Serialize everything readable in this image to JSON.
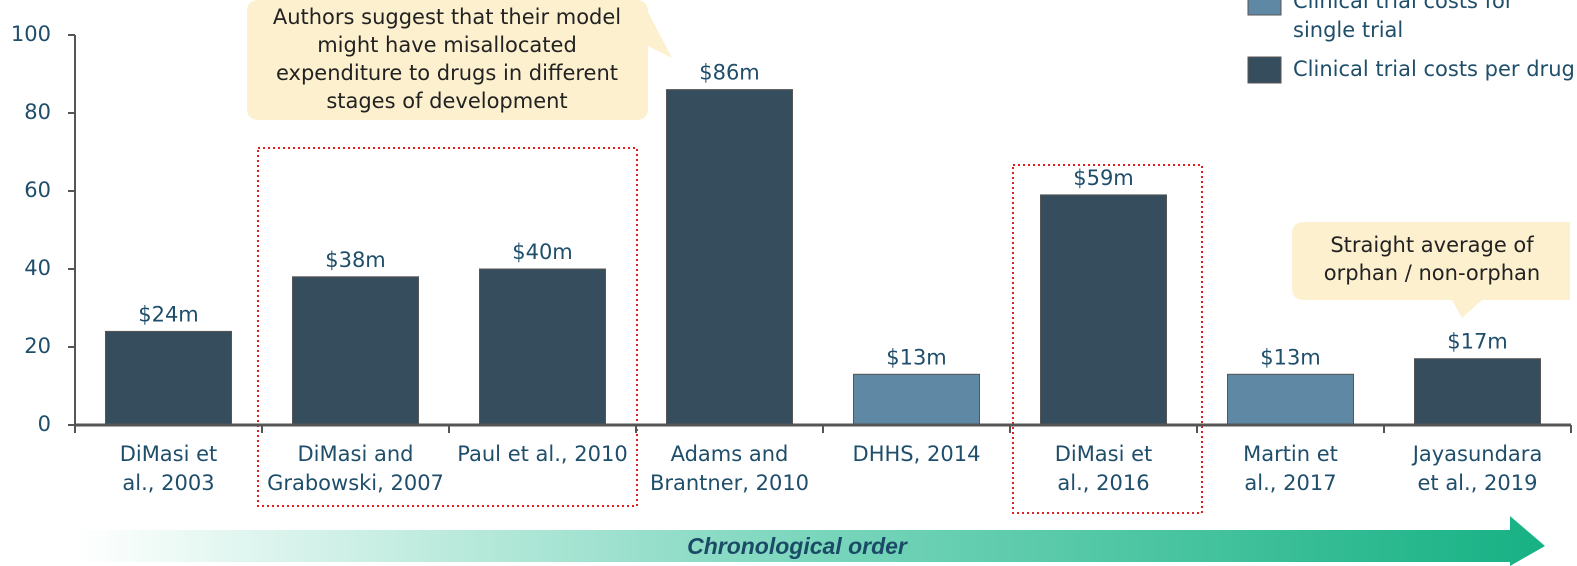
{
  "chart_data": {
    "type": "bar",
    "categories": [
      "DiMasi et\nal., 2003",
      "DiMasi and\nGrabowski, 2007",
      "Paul et al., 2010",
      "Adams and\nBrantner, 2010",
      "DHHS, 2014",
      "DiMasi et\nal., 2016",
      "Martin et\nal., 2017",
      "Jayasundara\net al., 2019"
    ],
    "series": [
      {
        "name": "Clinical trial costs for\nsingle trial",
        "color": "#5f88a5",
        "values": [
          null,
          null,
          null,
          null,
          13,
          null,
          13,
          null
        ],
        "value_labels": [
          null,
          null,
          null,
          null,
          "$13m",
          null,
          "$13m",
          null
        ]
      },
      {
        "name": "Clinical trial costs per drug",
        "color": "#364d5e",
        "values": [
          24,
          38,
          40,
          86,
          null,
          59,
          null,
          17
        ],
        "value_labels": [
          "$24m",
          "$38m",
          "$40m",
          "$86m",
          null,
          "$59m",
          null,
          "$17m"
        ]
      }
    ],
    "ylim": [
      0,
      100
    ],
    "yticks": [
      0,
      20,
      40,
      60,
      80,
      100
    ],
    "grid": false,
    "annotations": [
      "Authors suggest that their model\nmight have misallocated\nexpenditure to drugs in different\nstages of development",
      "Straight average of\norphan / non-orphan"
    ],
    "x_axis_label": "Chronological order"
  }
}
